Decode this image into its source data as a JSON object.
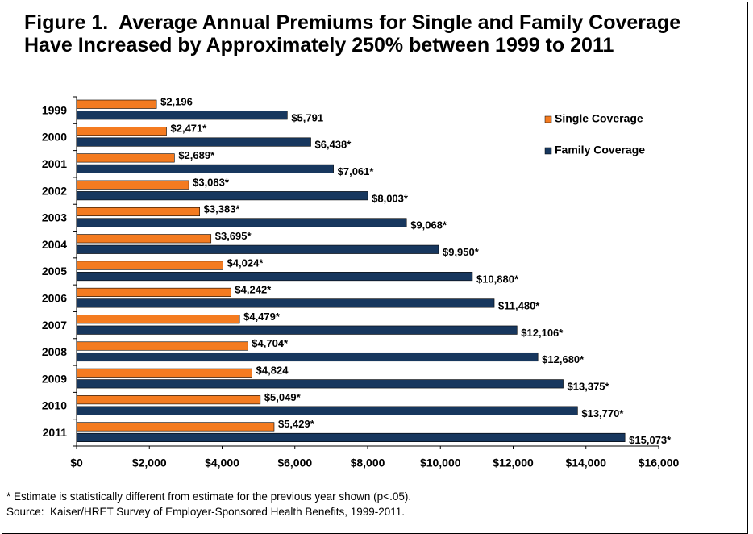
{
  "chart_data": {
    "type": "bar",
    "orientation": "horizontal",
    "title": "Figure 1.  Average Annual Premiums for Single and Family Coverage Have Increased by Approximately 250% between 1999 to 2011",
    "categories": [
      "1999",
      "2000",
      "2001",
      "2002",
      "2003",
      "2004",
      "2005",
      "2006",
      "2007",
      "2008",
      "2009",
      "2010",
      "2011"
    ],
    "series": [
      {
        "name": "Single Coverage",
        "color": "#f47b20",
        "values": [
          2196,
          2471,
          2689,
          3083,
          3383,
          3695,
          4024,
          4242,
          4479,
          4704,
          4824,
          5049,
          5429
        ],
        "value_labels": [
          "$2,196",
          "$2,471*",
          "$2,689*",
          "$3,083*",
          "$3,383*",
          "$3,695*",
          "$4,024*",
          "$4,242*",
          "$4,479*",
          "$4,704*",
          "$4,824",
          "$5,049*",
          "$5,429*"
        ]
      },
      {
        "name": "Family Coverage",
        "color": "#17375e",
        "values": [
          5791,
          6438,
          7061,
          8003,
          9068,
          9950,
          10880,
          11480,
          12106,
          12680,
          13375,
          13770,
          15073
        ],
        "value_labels": [
          "$5,791",
          "$6,438*",
          "$7,061*",
          "$8,003*",
          "$9,068*",
          "$9,950*",
          "$10,880*",
          "$11,480*",
          "$12,106*",
          "$12,680*",
          "$13,375*",
          "$13,770*",
          "$15,073*"
        ]
      }
    ],
    "xlim": [
      0,
      16000
    ],
    "xticks": [
      {
        "value": 0,
        "label": "$0"
      },
      {
        "value": 2000,
        "label": "$2,000"
      },
      {
        "value": 4000,
        "label": "$4,000"
      },
      {
        "value": 6000,
        "label": "$6,000"
      },
      {
        "value": 8000,
        "label": "$8,000"
      },
      {
        "value": 10000,
        "label": "$10,000"
      },
      {
        "value": 12000,
        "label": "$12,000"
      },
      {
        "value": 14000,
        "label": "$14,000"
      },
      {
        "value": 16000,
        "label": "$16,000"
      }
    ],
    "legend": "upper right",
    "footnotes": [
      "* Estimate is statistically different from estimate for the previous year shown (p<.05).",
      "Source:  Kaiser/HRET Survey of Employer-Sponsored Health Benefits, 1999-2011."
    ]
  }
}
